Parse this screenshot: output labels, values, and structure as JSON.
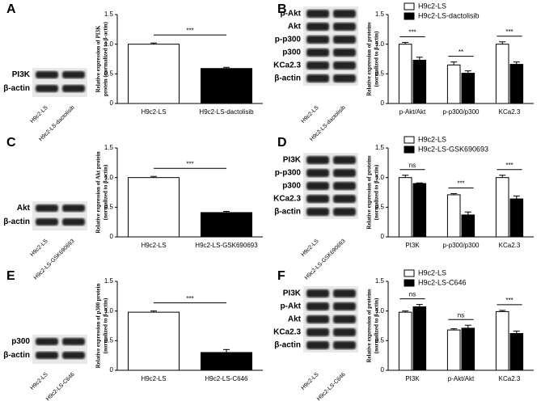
{
  "chart_data": [
    {
      "type": "bar",
      "panel": "A",
      "ylabel": [
        "Relative expression of PI3K",
        "protein (normalized to β-actin)"
      ],
      "ylim": [
        0,
        1.5
      ],
      "yticks": [
        0,
        0.5,
        {
          "value": 1,
          "label": "1.0"
        },
        1.5
      ],
      "categories": [
        "H9c2-LS",
        "H9c2-LS-dactolisib"
      ],
      "values": [
        1.0,
        0.59
      ],
      "errors": [
        0.02,
        0.02
      ],
      "colors": [
        "#ffffff",
        "#000000"
      ],
      "annotations": [
        "***"
      ],
      "blot": {
        "rows": [
          "PI3K",
          "β-actin"
        ],
        "lanes": [
          "H9c2-LS",
          "H9c2-LS-dactolisib"
        ]
      }
    },
    {
      "type": "grouped_bar",
      "panel": "B",
      "ylabel": [
        "Relative expression of  proteins",
        "(normalized to β-actin)"
      ],
      "ylim": [
        0,
        1.5
      ],
      "yticks": [
        0,
        0.5,
        {
          "value": 1,
          "label": "1.0"
        },
        1.5
      ],
      "categories": [
        "p-Akt/Akt",
        "p-p300/p300",
        "KCa2.3"
      ],
      "series": [
        {
          "name": "H9c2-LS",
          "color": "#ffffff",
          "values": [
            1.0,
            0.65,
            1.0
          ],
          "errors": [
            0.03,
            0.05,
            0.04
          ]
        },
        {
          "name": "H9c2-LS-dactolisib",
          "color": "#000000",
          "values": [
            0.73,
            0.51,
            0.66
          ],
          "errors": [
            0.05,
            0.04,
            0.04
          ]
        }
      ],
      "annotations": [
        "***",
        "**",
        "***"
      ],
      "blot": {
        "rows": [
          "p-Akt",
          "Akt",
          "p-p300",
          "p300",
          "KCa2.3",
          "β-actin"
        ],
        "lanes": [
          "H9c2-LS",
          "H9c2-LS-dactolisib"
        ]
      }
    },
    {
      "type": "bar",
      "panel": "C",
      "ylabel": [
        "Relative expression of Akt protein",
        "(normalized to β-actin)"
      ],
      "ylim": [
        0,
        1.5
      ],
      "yticks": [
        0,
        0.5,
        {
          "value": 1,
          "label": "1.0"
        },
        1.5
      ],
      "categories": [
        "H9c2-LS",
        "H9c2-LS-GSK690693"
      ],
      "values": [
        1.0,
        0.41
      ],
      "errors": [
        0.02,
        0.02
      ],
      "colors": [
        "#ffffff",
        "#000000"
      ],
      "annotations": [
        "***"
      ],
      "blot": {
        "rows": [
          "Akt",
          "β-actin"
        ],
        "lanes": [
          "H9c2-LS",
          "H9c2-LS-GSK690693"
        ]
      }
    },
    {
      "type": "grouped_bar",
      "panel": "D",
      "ylabel": [
        "Relative expression of  proteins",
        "(normalized to β-actin)"
      ],
      "ylim": [
        0,
        1.5
      ],
      "yticks": [
        0,
        0.5,
        {
          "value": 1,
          "label": "1.0"
        },
        1.5
      ],
      "categories": [
        "PI3K",
        "p-p300/p300",
        "KCa2.3"
      ],
      "series": [
        {
          "name": "H9c2-LS",
          "color": "#ffffff",
          "values": [
            1.0,
            0.71,
            1.0
          ],
          "errors": [
            0.04,
            0.02,
            0.04
          ]
        },
        {
          "name": "H9c2-LS-GSK690693",
          "color": "#000000",
          "values": [
            0.9,
            0.37,
            0.64
          ],
          "errors": [
            0.01,
            0.05,
            0.05
          ]
        }
      ],
      "annotations": [
        "ns",
        "***",
        "***"
      ],
      "blot": {
        "rows": [
          "PI3K",
          "p-p300",
          "p300",
          "KCa2.3",
          "β-actin"
        ],
        "lanes": [
          "H9c2-LS",
          "H9c2-LS-GSK690693"
        ]
      }
    },
    {
      "type": "bar",
      "panel": "E",
      "ylabel": [
        "Relative expression of p300 protein",
        "(normalized to β-actin)"
      ],
      "ylim": [
        0,
        1.5
      ],
      "yticks": [
        0,
        0.5,
        {
          "value": 1,
          "label": "1.0"
        },
        1.5
      ],
      "categories": [
        "H9c2-LS",
        "H9c2-LS-C646"
      ],
      "values": [
        0.98,
        0.3
      ],
      "errors": [
        0.02,
        0.05
      ],
      "colors": [
        "#ffffff",
        "#000000"
      ],
      "annotations": [
        "***"
      ],
      "blot": {
        "rows": [
          "p300",
          "β-actin"
        ],
        "lanes": [
          "H9c2-LS",
          "H9c2-LS-C646"
        ]
      }
    },
    {
      "type": "grouped_bar",
      "panel": "F",
      "ylabel": [
        "Relative expression of  proteins",
        "(normalized to β-actin)"
      ],
      "ylim": [
        0,
        1.5
      ],
      "yticks": [
        0,
        0.5,
        {
          "value": 1,
          "label": "1.0"
        },
        1.5
      ],
      "categories": [
        "PI3K",
        "p-Akt/Akt",
        "KCa2.3"
      ],
      "series": [
        {
          "name": "H9c2-LS",
          "color": "#ffffff",
          "values": [
            0.98,
            0.68,
            0.99
          ],
          "errors": [
            0.02,
            0.02,
            0.02
          ]
        },
        {
          "name": "H9c2-LS-C646",
          "color": "#000000",
          "values": [
            1.07,
            0.71,
            0.62
          ],
          "errors": [
            0.04,
            0.05,
            0.04
          ]
        }
      ],
      "annotations": [
        "ns",
        "ns",
        "***"
      ],
      "blot": {
        "rows": [
          "PI3K",
          "p-Akt",
          "Akt",
          "KCa2.3",
          "β-actin"
        ],
        "lanes": [
          "H9c2-LS",
          "H9c2-LS-C646"
        ]
      }
    }
  ]
}
